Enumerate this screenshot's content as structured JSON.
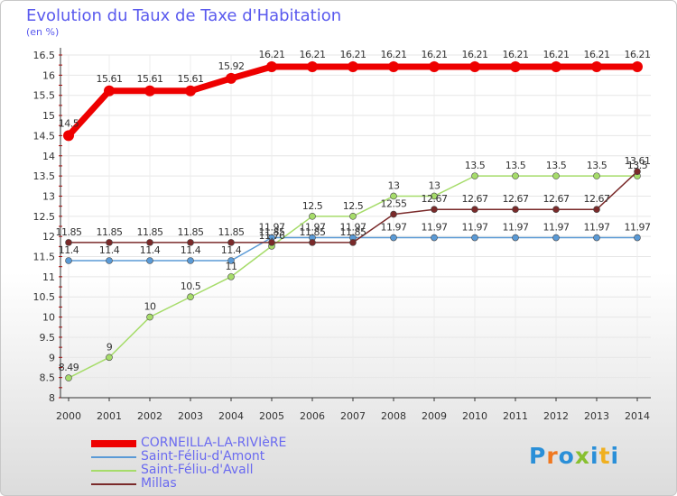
{
  "chart_data": {
    "type": "line",
    "title": "Evolution du Taux de Taxe d'Habitation",
    "ylabel": "(en %)",
    "xlabel": "",
    "ylim": [
      8,
      16.5
    ],
    "yticks": [
      "8",
      "8.5",
      "9",
      "9.5",
      "10",
      "10.5",
      "11",
      "11.5",
      "12",
      "12.5",
      "13",
      "13.5",
      "14",
      "14.5",
      "15",
      "15.5",
      "16",
      "16.5"
    ],
    "categories": [
      "2000",
      "2001",
      "2002",
      "2003",
      "2004",
      "2005",
      "2006",
      "2007",
      "2008",
      "2009",
      "2010",
      "2011",
      "2012",
      "2013",
      "2014"
    ],
    "series": [
      {
        "name": "CORNEILLA-LA-RIVIèRE",
        "color": "#ee0000",
        "values": [
          14.5,
          15.61,
          15.61,
          15.61,
          15.92,
          16.21,
          16.21,
          16.21,
          16.21,
          16.21,
          16.21,
          16.21,
          16.21,
          16.21,
          16.21
        ],
        "labels": [
          "14.5",
          "15.61",
          "15.61",
          "15.61",
          "15.92",
          "16.21",
          "16.21",
          "16.21",
          "16.21",
          "16.21",
          "16.21",
          "16.21",
          "16.21",
          "16.21",
          "16.21"
        ]
      },
      {
        "name": "Saint-Féliu-d'Amont",
        "color": "#5a9ad6",
        "values": [
          11.4,
          11.4,
          11.4,
          11.4,
          11.4,
          11.97,
          11.97,
          11.97,
          11.97,
          11.97,
          11.97,
          11.97,
          11.97,
          11.97,
          11.97
        ],
        "labels": [
          "11.4",
          "11.4",
          "11.4",
          "11.4",
          "11.4",
          "11.97",
          "11.97",
          "11.97",
          "11.97",
          "11.97",
          "11.97",
          "11.97",
          "11.97",
          "11.97",
          "11.97"
        ]
      },
      {
        "name": "Saint-Féliu-d'Avall",
        "color": "#a6dc6a",
        "values": [
          8.49,
          9,
          10,
          10.5,
          11,
          11.76,
          12.5,
          12.5,
          13,
          13,
          13.5,
          13.5,
          13.5,
          13.5,
          13.5
        ],
        "labels": [
          "8.49",
          "9",
          "10",
          "10.5",
          "11",
          "11.76",
          "12.5",
          "12.5",
          "13",
          "13",
          "13.5",
          "13.5",
          "13.5",
          "13.5",
          "13.5"
        ]
      },
      {
        "name": "Millas",
        "color": "#7a2a2a",
        "values": [
          11.85,
          11.85,
          11.85,
          11.85,
          11.85,
          11.85,
          11.85,
          11.85,
          12.55,
          12.67,
          12.67,
          12.67,
          12.67,
          12.67,
          13.61
        ],
        "labels": [
          "11.85",
          "11.85",
          "11.85",
          "11.85",
          "11.85",
          "11.85",
          "11.85",
          "11.85",
          "12.55",
          "12.67",
          "12.67",
          "12.67",
          "12.67",
          "12.67",
          "13.61"
        ]
      }
    ]
  },
  "brand": {
    "letters": [
      "P",
      "r",
      "o",
      "x",
      "i",
      "t",
      "i"
    ],
    "colors": [
      "#2a8fd8",
      "#f07820",
      "#2a8fd8",
      "#88c030",
      "#2a8fd8",
      "#f0b020",
      "#2a8fd8"
    ]
  }
}
